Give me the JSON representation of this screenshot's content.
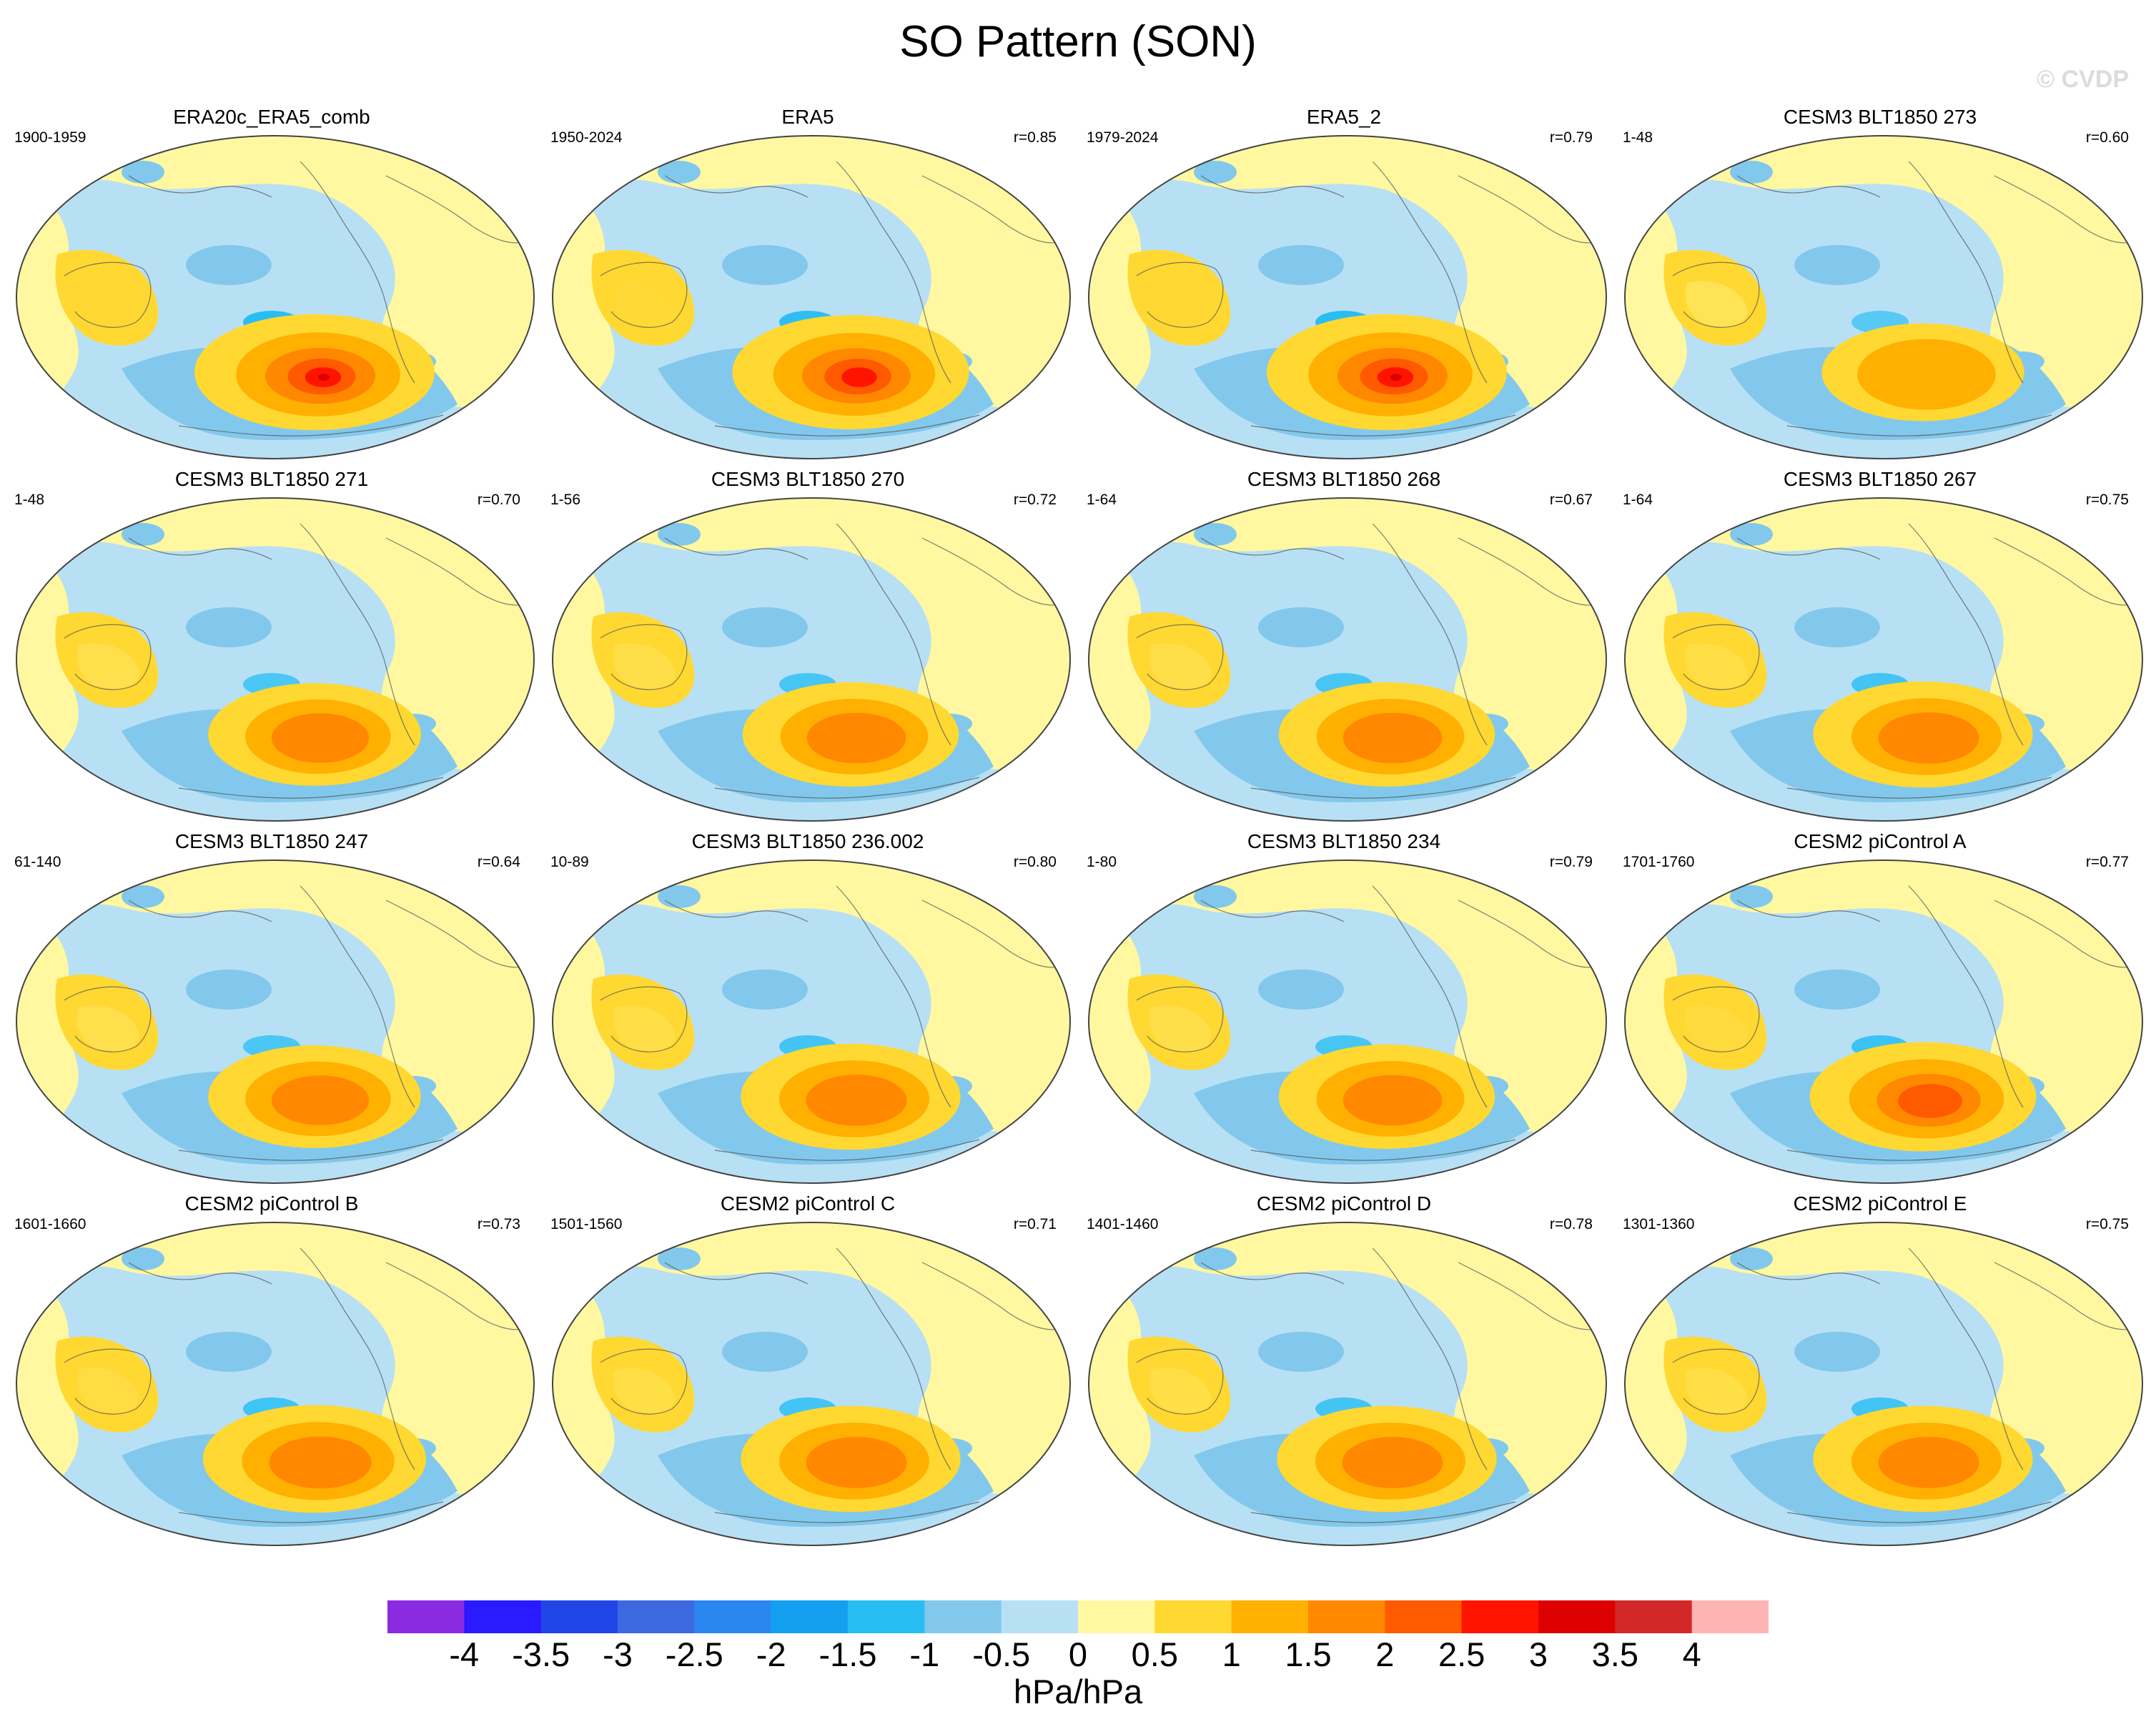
{
  "title": "SO Pattern (SON)",
  "watermark": "© CVDP",
  "units": "hPa/hPa",
  "colorbar": {
    "ticks": [
      "-4",
      "-3.5",
      "-3",
      "-2.5",
      "-2",
      "-1.5",
      "-1",
      "-0.5",
      "0",
      "0.5",
      "1",
      "1.5",
      "2",
      "2.5",
      "3",
      "3.5",
      "4"
    ],
    "colors": [
      "#8a2be2",
      "#2a1aff",
      "#2046e8",
      "#3c68e0",
      "#2a86f0",
      "#14a0f0",
      "#28bef4",
      "#82c8ec",
      "#b8e0f4",
      "#fff8a0",
      "#ffd832",
      "#ffb000",
      "#ff8800",
      "#ff5a00",
      "#ff1400",
      "#dc0000",
      "#d22828",
      "#ffb4b4"
    ]
  },
  "panels": [
    {
      "title": "ERA20c_ERA5_comb",
      "years": "1900-1959",
      "r": "",
      "intensity": 1.0
    },
    {
      "title": "ERA5",
      "years": "1950-2024",
      "r": "r=0.85",
      "intensity": 0.95
    },
    {
      "title": "ERA5_2",
      "years": "1979-2024",
      "r": "r=0.79",
      "intensity": 1.0
    },
    {
      "title": "CESM3 BLT1850 273",
      "years": "1-48",
      "r": "r=0.60",
      "intensity": 0.45
    },
    {
      "title": "CESM3 BLT1850 271",
      "years": "1-48",
      "r": "r=0.70",
      "intensity": 0.6
    },
    {
      "title": "CESM3 BLT1850 270",
      "years": "1-56",
      "r": "r=0.72",
      "intensity": 0.65
    },
    {
      "title": "CESM3 BLT1850 268",
      "years": "1-64",
      "r": "r=0.67",
      "intensity": 0.65
    },
    {
      "title": "CESM3 BLT1850 267",
      "years": "1-64",
      "r": "r=0.75",
      "intensity": 0.7
    },
    {
      "title": "CESM3 BLT1850 247",
      "years": "61-140",
      "r": "r=0.64",
      "intensity": 0.6
    },
    {
      "title": "CESM3 BLT1850 236.002",
      "years": "10-89",
      "r": "r=0.80",
      "intensity": 0.7
    },
    {
      "title": "CESM3 BLT1850 234",
      "years": "1-80",
      "r": "r=0.79",
      "intensity": 0.65
    },
    {
      "title": "CESM2 piControl A",
      "years": "1701-1760",
      "r": "r=0.77",
      "intensity": 0.8
    },
    {
      "title": "CESM2 piControl B",
      "years": "1601-1660",
      "r": "r=0.73",
      "intensity": 0.75
    },
    {
      "title": "CESM2 piControl C",
      "years": "1501-1560",
      "r": "r=0.71",
      "intensity": 0.7
    },
    {
      "title": "CESM2 piControl D",
      "years": "1401-1460",
      "r": "r=0.78",
      "intensity": 0.7
    },
    {
      "title": "CESM2 piControl E",
      "years": "1301-1360",
      "r": "r=0.75",
      "intensity": 0.7
    }
  ]
}
